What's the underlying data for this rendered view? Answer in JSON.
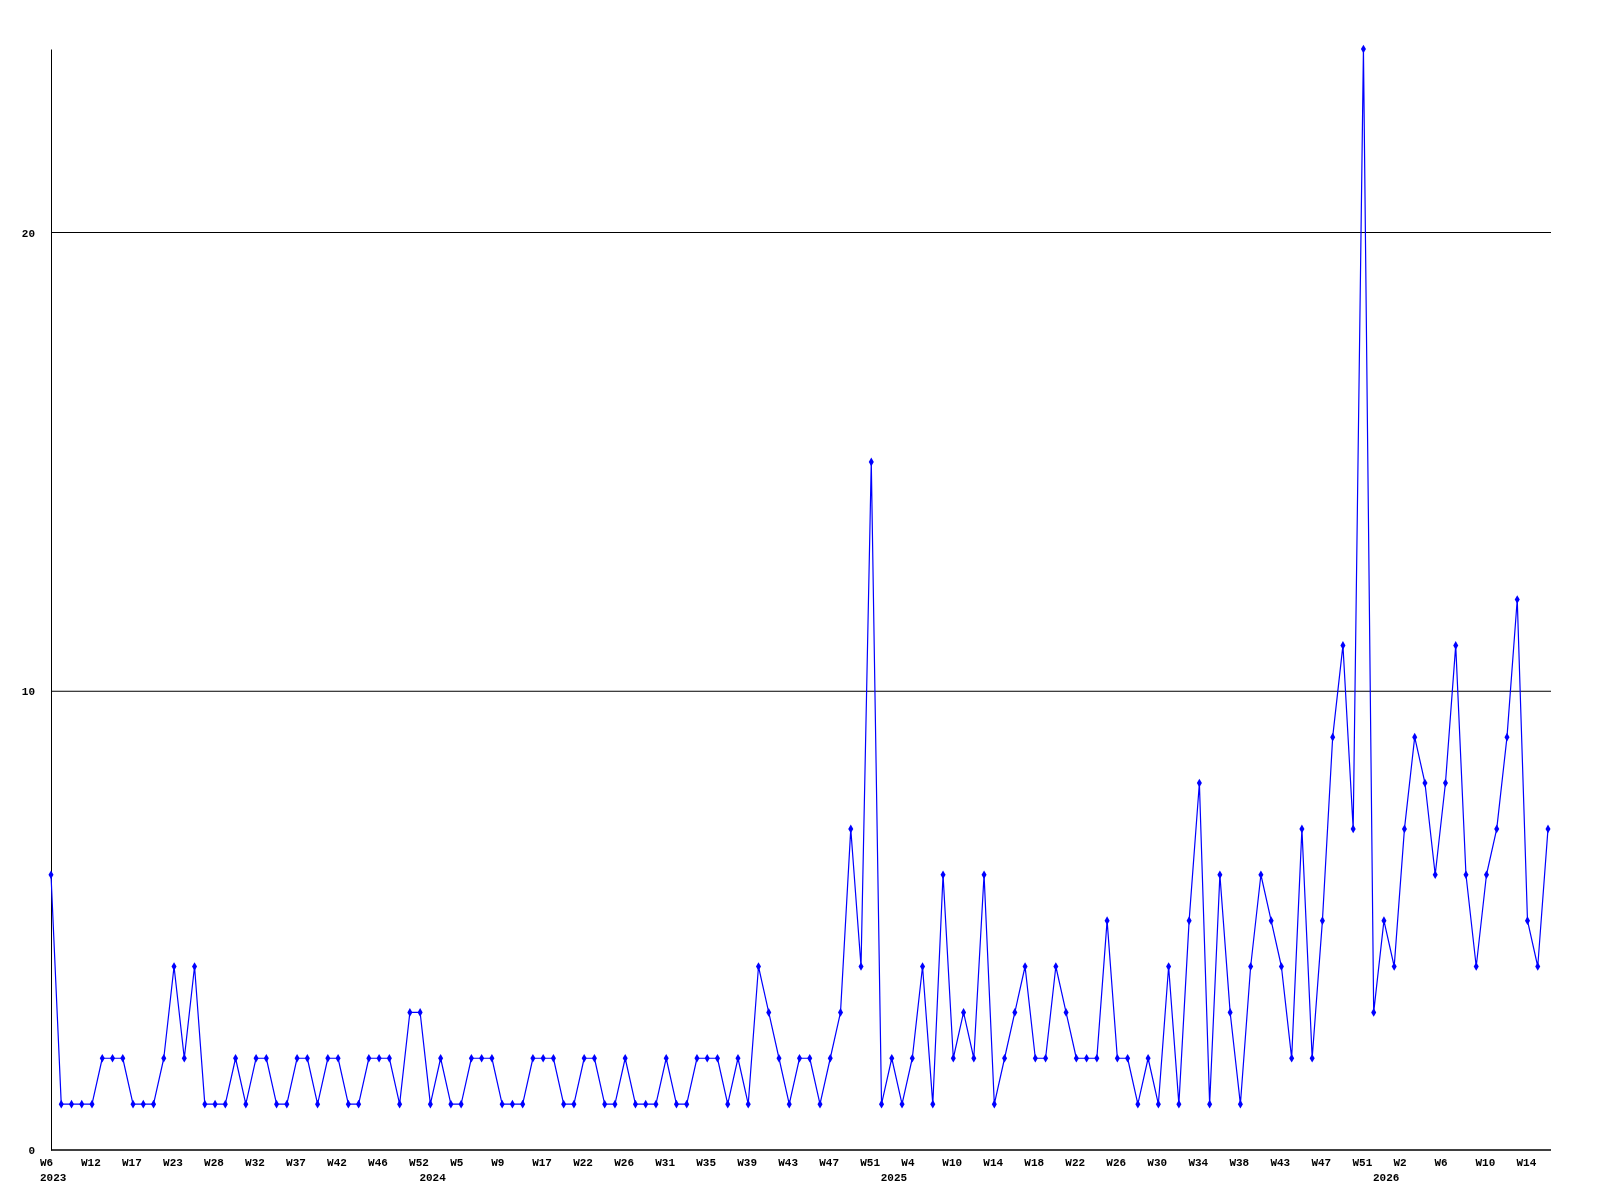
{
  "chart_data": {
    "type": "line",
    "categories": [
      "W6\n2023",
      null,
      null,
      null,
      "W12",
      null,
      null,
      null,
      "W17",
      null,
      null,
      null,
      "W23",
      null,
      null,
      null,
      "W28",
      null,
      null,
      null,
      "W32",
      null,
      null,
      null,
      "W37",
      null,
      null,
      null,
      "W42",
      null,
      null,
      null,
      "W46",
      null,
      null,
      null,
      "W52",
      "\n2024",
      null,
      null,
      "W5",
      null,
      null,
      null,
      "W9",
      null,
      null,
      null,
      "W17",
      null,
      null,
      null,
      "W22",
      null,
      null,
      null,
      "W26",
      null,
      null,
      null,
      "W31",
      null,
      null,
      null,
      "W35",
      null,
      null,
      null,
      "W39",
      null,
      null,
      null,
      "W43",
      null,
      null,
      null,
      "W47",
      null,
      null,
      null,
      "W51",
      null,
      "\n2025",
      null,
      "W4",
      null,
      null,
      null,
      "W10",
      null,
      null,
      null,
      "W14",
      null,
      null,
      null,
      "W18",
      null,
      null,
      null,
      "W22",
      null,
      null,
      null,
      "W26",
      null,
      null,
      null,
      "W30",
      null,
      null,
      null,
      "W34",
      null,
      null,
      null,
      "W38",
      null,
      null,
      null,
      "W43",
      null,
      null,
      null,
      "W47",
      null,
      null,
      null,
      "W51",
      null,
      "\n2026",
      null,
      "W2",
      null,
      null,
      null,
      "W6",
      null,
      null,
      null,
      "W10",
      null,
      null,
      null,
      "W14",
      null,
      null
    ],
    "series": [
      {
        "color": "#0000ff",
        "values": [
          6,
          1,
          1,
          1,
          1,
          2,
          2,
          2,
          1,
          1,
          1,
          2,
          4,
          2,
          4,
          1,
          1,
          1,
          2,
          1,
          2,
          2,
          1,
          1,
          2,
          2,
          1,
          2,
          2,
          1,
          1,
          2,
          2,
          2,
          1,
          3,
          3,
          1,
          2,
          1,
          1,
          2,
          2,
          2,
          1,
          1,
          1,
          2,
          2,
          2,
          1,
          1,
          2,
          2,
          1,
          1,
          2,
          1,
          1,
          1,
          2,
          1,
          1,
          2,
          2,
          2,
          1,
          2,
          1,
          4,
          3,
          2,
          1,
          2,
          2,
          1,
          2,
          3,
          7,
          4,
          15,
          1,
          2,
          1,
          2,
          4,
          1,
          6,
          2,
          3,
          2,
          6,
          1,
          2,
          3,
          4,
          2,
          2,
          4,
          3,
          2,
          2,
          2,
          5,
          2,
          2,
          1,
          2,
          1,
          4,
          1,
          5,
          8,
          1,
          6,
          3,
          1,
          4,
          6,
          5,
          4,
          2,
          7,
          2,
          5,
          9,
          11,
          7,
          24,
          3,
          5,
          4,
          7,
          9,
          8,
          6,
          8,
          11,
          6,
          4,
          6,
          7,
          9,
          12,
          5,
          4,
          7
        ]
      }
    ],
    "ylim": [
      0,
      24
    ],
    "yticks": [
      0,
      10,
      20
    ],
    "grid": "y",
    "marker": "diamond",
    "line_style": "solid"
  }
}
